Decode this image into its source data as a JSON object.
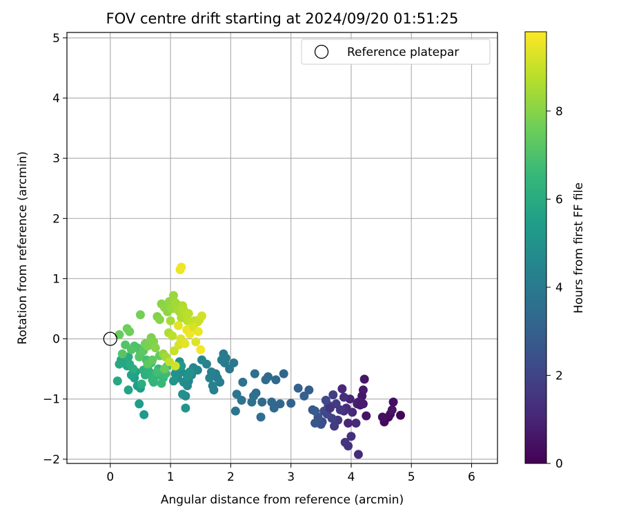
{
  "chart_data": {
    "type": "scatter",
    "title": "FOV centre drift starting at 2024/09/20 01:51:25",
    "xlabel": "Angular distance from reference (arcmin)",
    "ylabel": "Rotation from reference (arcmin)",
    "xlim": [
      -0.72,
      6.43
    ],
    "ylim": [
      -2.07,
      5.09
    ],
    "x_ticks": [
      0,
      1,
      2,
      3,
      4,
      5,
      6
    ],
    "y_ticks": [
      -2,
      -1,
      0,
      1,
      2,
      3,
      4,
      5
    ],
    "grid": true,
    "legend": {
      "position": "top-right",
      "entries": [
        "Reference platepar"
      ]
    },
    "reference_point": {
      "x": 0,
      "y": 0,
      "marker": "open-circle",
      "color": "#000000"
    },
    "colorbar": {
      "label": "Hours from first FF file",
      "range": [
        0,
        9.8
      ],
      "ticks": [
        0,
        2,
        4,
        6,
        8
      ],
      "colormap": "viridis",
      "stops": [
        "#440154",
        "#482878",
        "#3e4a89",
        "#31688e",
        "#26828e",
        "#1f9e89",
        "#35b779",
        "#6ece58",
        "#b5de2b",
        "#fde725"
      ]
    },
    "series": [
      {
        "values_x": [
          4.82,
          4.58,
          4.65,
          4.7,
          4.62,
          4.55,
          4.52,
          4.68,
          4.22,
          4.2,
          4.18,
          4.25,
          4.12,
          4.1,
          4.15,
          4.2,
          3.98,
          4.02,
          3.92,
          3.88,
          3.85,
          4.08,
          4.0,
          3.95,
          3.9,
          3.88,
          3.82,
          3.75,
          3.7,
          3.78,
          3.72,
          3.68,
          3.95,
          4.12,
          3.62,
          3.58,
          3.55,
          3.6,
          3.52,
          3.5,
          3.45,
          3.4,
          3.36,
          3.65
        ],
        "values_y": [
          -1.27,
          -1.32,
          -1.25,
          -1.05,
          -1.3,
          -1.38,
          -1.3,
          -1.18,
          -0.67,
          -0.85,
          -0.95,
          -1.28,
          -1.05,
          -1.08,
          -1.1,
          -1.08,
          -1.0,
          -1.22,
          -1.15,
          -0.97,
          -0.83,
          -1.4,
          -1.62,
          -1.78,
          -1.72,
          -1.2,
          -1.18,
          -1.08,
          -0.93,
          -1.35,
          -1.45,
          -1.32,
          -1.4,
          -1.92,
          -1.1,
          -1.02,
          -1.2,
          -1.25,
          -1.38,
          -1.42,
          -1.3,
          -1.4,
          -1.18,
          -1.15
        ],
        "hours": [
          0.1,
          0.2,
          0.3,
          0.4,
          0.3,
          0.2,
          0.4,
          0.5,
          0.6,
          0.7,
          0.6,
          0.5,
          0.8,
          0.9,
          0.7,
          0.8,
          1.0,
          1.1,
          1.2,
          1.3,
          1.1,
          1.2,
          1.3,
          1.4,
          1.5,
          1.4,
          1.6,
          1.7,
          1.8,
          1.6,
          1.7,
          1.9,
          1.0,
          1.2,
          2.0,
          2.1,
          2.2,
          2.1,
          2.3,
          2.4,
          2.5,
          2.6,
          2.7,
          1.5
        ]
      },
      {
        "values_x": [
          3.4,
          3.3,
          3.22,
          3.12,
          3.0,
          2.88,
          2.82,
          2.75,
          2.72,
          2.68,
          2.62,
          2.58,
          2.52,
          2.5,
          2.42,
          2.38,
          2.4,
          2.35,
          2.2,
          2.18,
          2.1,
          2.08,
          2.05,
          1.98,
          1.92,
          1.9,
          1.88,
          1.85,
          1.82,
          1.78,
          1.75,
          1.72,
          1.7,
          1.68,
          1.65,
          1.6,
          1.52,
          1.45,
          1.38,
          1.35,
          1.3,
          1.28,
          1.25,
          1.22,
          1.18,
          1.15,
          1.12,
          1.2,
          1.32,
          1.28,
          1.1,
          1.08,
          1.05,
          1.25,
          1.18
        ],
        "values_y": [
          -1.2,
          -0.85,
          -0.95,
          -0.82,
          -1.07,
          -0.58,
          -1.08,
          -0.68,
          -1.15,
          -1.05,
          -0.63,
          -0.68,
          -1.05,
          -1.3,
          -0.9,
          -0.95,
          -0.58,
          -1.05,
          -0.72,
          -1.02,
          -0.92,
          -1.2,
          -0.4,
          -0.5,
          -0.32,
          -0.4,
          -0.25,
          -0.35,
          -0.72,
          -0.65,
          -0.58,
          -0.85,
          -0.78,
          -0.55,
          -0.65,
          -0.42,
          -0.35,
          -0.52,
          -0.48,
          -0.6,
          -0.7,
          -0.78,
          -0.95,
          -0.72,
          -0.55,
          -0.38,
          -0.65,
          -0.92,
          -0.55,
          -0.62,
          -0.5,
          -0.58,
          -0.7,
          -1.15,
          -0.45
        ],
        "hours": [
          2.8,
          2.9,
          3.0,
          3.0,
          3.1,
          3.2,
          3.2,
          3.3,
          3.3,
          3.3,
          3.4,
          3.4,
          3.4,
          3.5,
          3.5,
          3.6,
          3.6,
          3.6,
          3.7,
          3.7,
          3.8,
          3.8,
          3.9,
          3.9,
          4.0,
          4.0,
          4.0,
          4.1,
          4.1,
          4.2,
          4.2,
          4.3,
          4.3,
          4.3,
          4.4,
          4.4,
          4.5,
          4.5,
          4.5,
          4.6,
          4.6,
          4.6,
          4.7,
          4.7,
          4.7,
          4.8,
          4.8,
          4.9,
          4.9,
          5.0,
          5.0,
          5.0,
          5.1,
          5.1,
          5.2
        ]
      },
      {
        "values_x": [
          0.56,
          0.48,
          0.5,
          0.45,
          0.4,
          0.42,
          0.35,
          0.3,
          0.28,
          0.22,
          0.18,
          0.15,
          0.12,
          0.3,
          0.32,
          0.38,
          0.52,
          0.55,
          0.58,
          0.62,
          0.65,
          0.7,
          0.72,
          0.75,
          0.8,
          0.85,
          0.88,
          0.92,
          0.95,
          0.68,
          0.78,
          0.6,
          0.5,
          0.45,
          0.4,
          0.35,
          0.25,
          0.2,
          0.48,
          0.55,
          0.62,
          0.7,
          0.82,
          0.9
        ],
        "values_y": [
          -1.26,
          -1.08,
          -0.82,
          -0.78,
          -0.65,
          -0.55,
          -0.6,
          -0.85,
          -0.45,
          -0.4,
          -0.35,
          -0.42,
          -0.7,
          -0.3,
          -0.42,
          -0.5,
          -0.75,
          -0.52,
          -0.6,
          -0.48,
          -0.55,
          -0.68,
          -0.72,
          -0.62,
          -0.5,
          -0.74,
          -0.65,
          -0.58,
          -0.45,
          -0.4,
          -0.55,
          -0.35,
          -0.25,
          -0.15,
          -0.12,
          -0.18,
          -0.1,
          -0.25,
          -0.3,
          -0.2,
          -0.42,
          -0.35,
          -0.28,
          -0.5
        ],
        "hours": [
          5.3,
          5.4,
          5.4,
          5.5,
          5.5,
          5.6,
          5.6,
          5.7,
          5.7,
          5.8,
          5.8,
          5.9,
          5.9,
          6.0,
          6.0,
          6.1,
          6.1,
          6.2,
          6.2,
          6.3,
          6.3,
          6.4,
          6.4,
          6.5,
          6.5,
          6.6,
          6.6,
          6.7,
          6.7,
          6.8,
          6.8,
          6.9,
          6.9,
          7.0,
          7.0,
          7.1,
          7.1,
          7.2,
          7.2,
          7.3,
          7.3,
          7.4,
          7.4,
          7.5
        ]
      },
      {
        "values_x": [
          0.15,
          0.28,
          0.32,
          0.5,
          0.58,
          0.62,
          0.68,
          0.72,
          0.78,
          0.82,
          0.85,
          0.9,
          0.95,
          0.98,
          1.0,
          1.02,
          1.05,
          1.08,
          1.1,
          1.12,
          1.15,
          1.18,
          1.2,
          1.22,
          1.25,
          1.28,
          1.3,
          1.35,
          1.4,
          1.45,
          1.48,
          1.52,
          0.75,
          0.88,
          0.92,
          0.97,
          1.03,
          1.06,
          1.14,
          1.17,
          1.24,
          1.27,
          1.32,
          1.16,
          1.18,
          1.5,
          1.38,
          1.42,
          1.46,
          1.0,
          0.98,
          1.08,
          1.13
        ],
        "values_y": [
          0.07,
          0.17,
          0.12,
          0.4,
          -0.08,
          -0.12,
          0.02,
          -0.05,
          0.37,
          0.32,
          0.58,
          0.52,
          0.45,
          0.62,
          0.55,
          0.5,
          0.72,
          0.6,
          0.58,
          0.48,
          0.45,
          0.35,
          0.55,
          0.48,
          0.38,
          0.3,
          0.42,
          0.28,
          0.3,
          0.28,
          0.32,
          0.38,
          -0.15,
          -0.25,
          -0.3,
          0.1,
          0.05,
          -0.2,
          -0.1,
          0.0,
          -0.08,
          0.15,
          0.08,
          1.15,
          1.19,
          -0.18,
          0.2,
          -0.05,
          0.12,
          0.3,
          -0.38,
          -0.45,
          0.22
        ],
        "hours": [
          7.5,
          7.6,
          7.6,
          7.7,
          7.7,
          7.8,
          7.8,
          7.9,
          7.9,
          8.0,
          8.0,
          8.1,
          8.1,
          8.2,
          8.2,
          8.3,
          8.3,
          8.4,
          8.4,
          8.5,
          8.5,
          8.6,
          8.6,
          8.7,
          8.7,
          8.8,
          8.8,
          8.9,
          8.9,
          9.0,
          9.0,
          9.1,
          8.0,
          8.2,
          8.4,
          8.6,
          8.8,
          9.0,
          9.2,
          9.3,
          9.4,
          9.5,
          9.6,
          9.5,
          9.6,
          9.7,
          9.2,
          9.3,
          9.5,
          8.5,
          8.9,
          9.1,
          9.4
        ]
      }
    ]
  }
}
